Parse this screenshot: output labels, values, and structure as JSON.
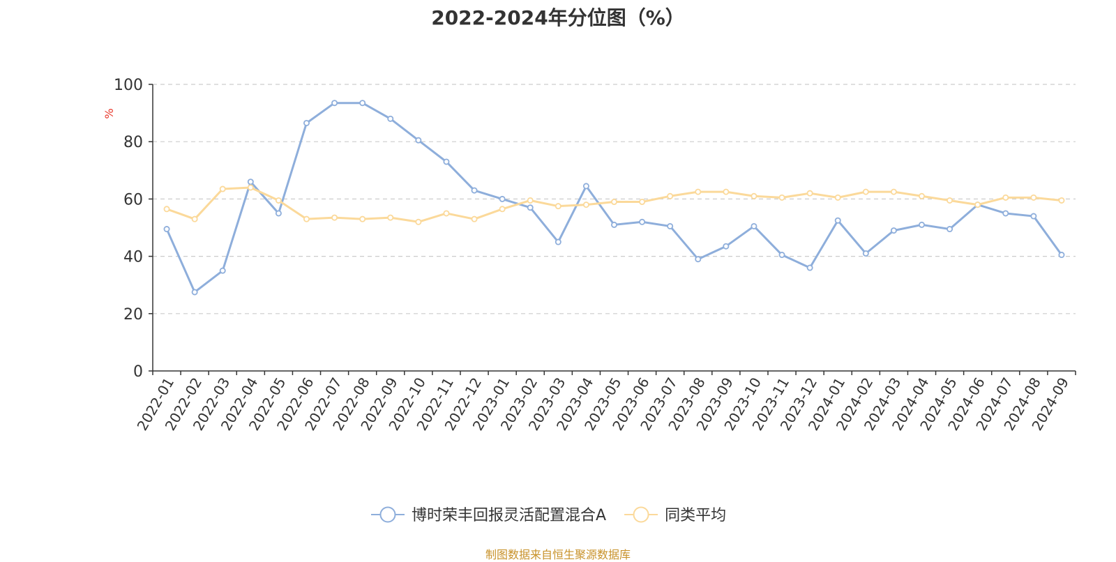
{
  "chart_data": {
    "type": "line",
    "title": "2022-2024年分位图（%）",
    "ylabel": "%",
    "xlabel": "",
    "ylim": [
      0,
      100
    ],
    "yticks": [
      0,
      20,
      40,
      60,
      80,
      100
    ],
    "grid": true,
    "legend_position": "bottom-center",
    "categories": [
      "2022-01",
      "2022-02",
      "2022-03",
      "2022-04",
      "2022-05",
      "2022-06",
      "2022-07",
      "2022-08",
      "2022-09",
      "2022-10",
      "2022-11",
      "2022-12",
      "2023-01",
      "2023-02",
      "2023-03",
      "2023-04",
      "2023-05",
      "2023-06",
      "2023-07",
      "2023-08",
      "2023-09",
      "2023-10",
      "2023-11",
      "2023-12",
      "2024-01",
      "2024-02",
      "2024-03",
      "2024-04",
      "2024-05",
      "2024-06",
      "2024-07",
      "2024-08",
      "2024-09"
    ],
    "series": [
      {
        "name": "博时荣丰回报灵活配置混合A",
        "color": "#8eaedb",
        "values": [
          49.5,
          27.5,
          35,
          66,
          55,
          86.5,
          93.5,
          93.5,
          88,
          80.5,
          73,
          63,
          60,
          57,
          45,
          64.5,
          51,
          52,
          50.5,
          39,
          43.5,
          50.5,
          40.5,
          36,
          52.5,
          41,
          49,
          51,
          49.5,
          58,
          55,
          54,
          40.5
        ]
      },
      {
        "name": "同类平均",
        "color": "#fbd99a",
        "values": [
          56.5,
          53,
          63.5,
          64,
          59.5,
          53,
          53.5,
          53,
          53.5,
          52,
          55,
          53,
          56.5,
          59.5,
          57.5,
          58,
          59,
          59,
          61,
          62.5,
          62.5,
          61,
          60.5,
          62,
          60.5,
          62.5,
          62.5,
          61,
          59.5,
          58,
          60.5,
          60.5,
          59.5
        ]
      }
    ]
  },
  "source": "制图数据来自恒生聚源数据库",
  "colors": {
    "axis": "#333333",
    "grid": "#cccccc",
    "ylabel": "#e8382c",
    "source": "#c8922a"
  }
}
